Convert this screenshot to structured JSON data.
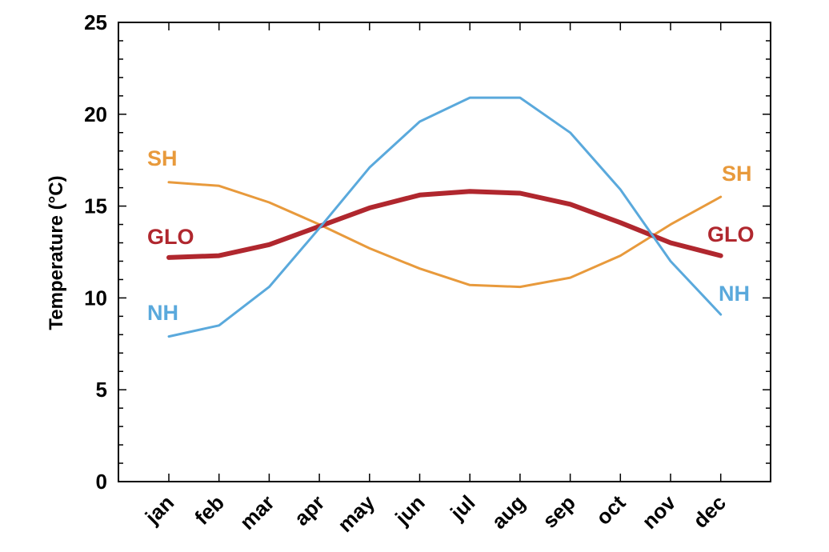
{
  "chart_data": {
    "type": "line",
    "title": "",
    "xlabel": "",
    "ylabel": "Temperature (°C)",
    "ylim": [
      0,
      25
    ],
    "yticks": [
      0,
      5,
      10,
      15,
      20,
      25
    ],
    "categories": [
      "jan",
      "feb",
      "mar",
      "apr",
      "may",
      "jun",
      "jul",
      "aug",
      "sep",
      "oct",
      "nov",
      "dec"
    ],
    "grid": false,
    "legend": "inline labels at both ends of each line",
    "series": [
      {
        "name": "SH",
        "color": "#E89A3C",
        "values": [
          16.3,
          16.1,
          15.2,
          14.0,
          12.7,
          11.6,
          10.7,
          10.6,
          11.1,
          12.3,
          14.0,
          15.5
        ]
      },
      {
        "name": "GLO",
        "color": "#B0272E",
        "values": [
          12.2,
          12.3,
          12.9,
          13.9,
          14.9,
          15.6,
          15.8,
          15.7,
          15.1,
          14.1,
          13.0,
          12.3
        ]
      },
      {
        "name": "NH",
        "color": "#5AA9DC",
        "values": [
          7.9,
          8.5,
          10.6,
          13.8,
          17.1,
          19.6,
          20.9,
          20.9,
          19.0,
          15.9,
          12.0,
          9.1
        ]
      }
    ]
  }
}
